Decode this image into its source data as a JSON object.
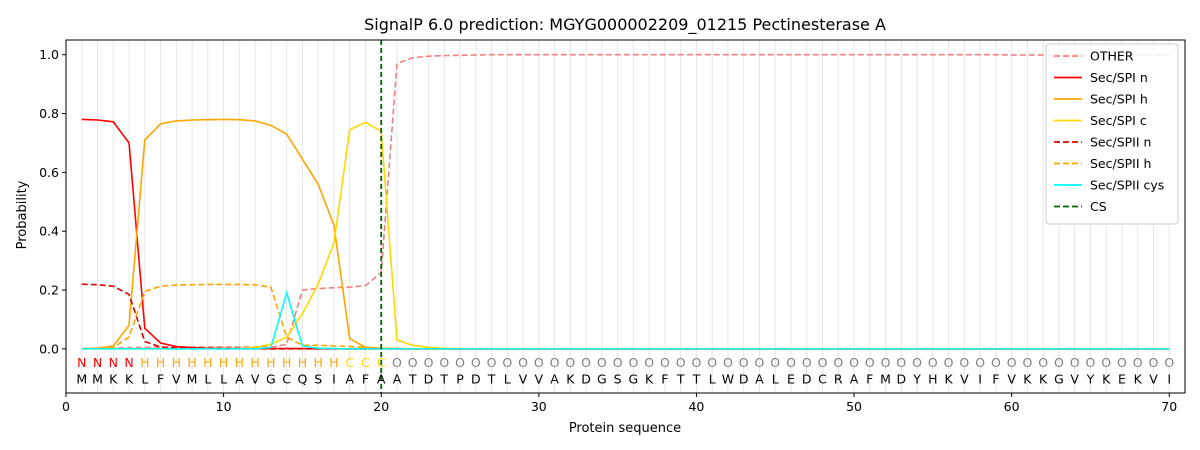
{
  "chart_data": {
    "type": "line",
    "title": "SignalP 6.0 prediction: MGYG000002209_01215 Pectinesterase A",
    "xlabel": "Protein sequence",
    "ylabel": "Probability",
    "xlim": [
      0,
      71
    ],
    "ylim": [
      -0.15,
      1.05
    ],
    "xticks": [
      0,
      10,
      20,
      30,
      40,
      50,
      60,
      70
    ],
    "yticks": [
      0.0,
      0.2,
      0.4,
      0.6,
      0.8,
      1.0
    ],
    "grid": "vertical lines at each residue",
    "legend_position": "top-right",
    "sequence": [
      "M",
      "M",
      "K",
      "K",
      "L",
      "F",
      "V",
      "M",
      "L",
      "L",
      "A",
      "V",
      "G",
      "C",
      "Q",
      "S",
      "I",
      "A",
      "F",
      "A",
      "A",
      "T",
      "D",
      "T",
      "P",
      "D",
      "T",
      "L",
      "V",
      "V",
      "A",
      "K",
      "D",
      "G",
      "S",
      "G",
      "K",
      "F",
      "T",
      "T",
      "L",
      "W",
      "D",
      "A",
      "L",
      "E",
      "D",
      "C",
      "R",
      "A",
      "F",
      "M",
      "D",
      "Y",
      "H",
      "K",
      "V",
      "I",
      "F",
      "V",
      "K",
      "K",
      "G",
      "V",
      "Y",
      "K",
      "E",
      "K",
      "V",
      "I"
    ],
    "region_labels": [
      "N",
      "N",
      "N",
      "N",
      "H",
      "H",
      "H",
      "H",
      "H",
      "H",
      "H",
      "H",
      "H",
      "H",
      "H",
      "H",
      "H",
      "C",
      "C",
      "C",
      "O",
      "O",
      "O",
      "O",
      "O",
      "O",
      "O",
      "O",
      "O",
      "O",
      "O",
      "O",
      "O",
      "O",
      "O",
      "O",
      "O",
      "O",
      "O",
      "O",
      "O",
      "O",
      "O",
      "O",
      "O",
      "O",
      "O",
      "O",
      "O",
      "O",
      "O",
      "O",
      "O",
      "O",
      "O",
      "O",
      "O",
      "O",
      "O",
      "O",
      "O",
      "O",
      "O",
      "O",
      "O",
      "O",
      "O",
      "O",
      "O",
      "O"
    ],
    "region_colors": {
      "N": "#ff0000",
      "H": "#ffa500",
      "C": "#ffd700",
      "O": "#808080"
    },
    "cleavage_site": 20,
    "series": [
      {
        "name": "OTHER",
        "color": "#f08080",
        "dash": "dashed",
        "values": [
          0.001,
          0.002,
          0.003,
          0.004,
          0.005,
          0.006,
          0.006,
          0.006,
          0.006,
          0.006,
          0.006,
          0.006,
          0.006,
          0.015,
          0.2,
          0.205,
          0.208,
          0.21,
          0.215,
          0.26,
          0.97,
          0.99,
          0.995,
          0.997,
          0.998,
          0.999,
          1.0,
          1.0,
          1.0,
          1.0,
          1.0,
          1.0,
          1.0,
          1.0,
          1.0,
          1.0,
          1.0,
          1.0,
          1.0,
          1.0,
          1.0,
          1.0,
          1.0,
          1.0,
          1.0,
          1.0,
          1.0,
          1.0,
          1.0,
          1.0,
          1.0,
          1.0,
          1.0,
          1.0,
          1.0,
          1.0,
          1.0,
          1.0,
          1.0,
          0.999,
          0.999,
          0.999,
          0.999,
          0.999,
          0.999,
          0.999,
          0.999,
          0.999,
          0.999,
          0.999
        ]
      },
      {
        "name": "Sec/SPI n",
        "color": "#ff0000",
        "dash": "solid",
        "values": [
          0.78,
          0.778,
          0.772,
          0.7,
          0.07,
          0.02,
          0.008,
          0.004,
          0.002,
          0.001,
          0.001,
          0.001,
          0.001,
          0.001,
          0.001,
          0,
          0,
          0,
          0,
          0,
          0,
          0,
          0,
          0,
          0,
          0,
          0,
          0,
          0,
          0,
          0,
          0,
          0,
          0,
          0,
          0,
          0,
          0,
          0,
          0,
          0,
          0,
          0,
          0,
          0,
          0,
          0,
          0,
          0,
          0,
          0,
          0,
          0,
          0,
          0,
          0,
          0,
          0,
          0,
          0,
          0,
          0,
          0,
          0,
          0,
          0,
          0,
          0,
          0,
          0
        ]
      },
      {
        "name": "Sec/SPI h",
        "color": "#ffa500",
        "dash": "solid",
        "values": [
          0.0,
          0.003,
          0.01,
          0.08,
          0.71,
          0.765,
          0.775,
          0.778,
          0.779,
          0.78,
          0.779,
          0.775,
          0.76,
          0.73,
          0.645,
          0.56,
          0.42,
          0.035,
          0.005,
          0.002,
          0.001,
          0,
          0,
          0,
          0,
          0,
          0,
          0,
          0,
          0,
          0,
          0,
          0,
          0,
          0,
          0,
          0,
          0,
          0,
          0,
          0,
          0,
          0,
          0,
          0,
          0,
          0,
          0,
          0,
          0,
          0,
          0,
          0,
          0,
          0,
          0,
          0,
          0,
          0,
          0,
          0,
          0,
          0,
          0,
          0,
          0,
          0,
          0,
          0,
          0
        ]
      },
      {
        "name": "Sec/SPI c",
        "color": "#ffd700",
        "dash": "solid",
        "values": [
          0,
          0,
          0,
          0,
          0,
          0,
          0,
          0,
          0,
          0,
          0.001,
          0.005,
          0.015,
          0.04,
          0.12,
          0.22,
          0.36,
          0.745,
          0.77,
          0.74,
          0.03,
          0.012,
          0.005,
          0.002,
          0.001,
          0,
          0,
          0,
          0,
          0,
          0,
          0,
          0,
          0,
          0,
          0,
          0,
          0,
          0,
          0,
          0,
          0,
          0,
          0,
          0,
          0,
          0,
          0,
          0,
          0,
          0,
          0,
          0,
          0,
          0,
          0,
          0,
          0,
          0,
          0,
          0,
          0,
          0,
          0,
          0,
          0,
          0,
          0,
          0,
          0
        ]
      },
      {
        "name": "Sec/SPII n",
        "color": "#dd0000",
        "dash": "dashed",
        "values": [
          0.22,
          0.218,
          0.213,
          0.185,
          0.025,
          0.006,
          0.003,
          0.001,
          0.001,
          0,
          0,
          0,
          0,
          0,
          0,
          0,
          0,
          0,
          0,
          0,
          0,
          0,
          0,
          0,
          0,
          0,
          0,
          0,
          0,
          0,
          0,
          0,
          0,
          0,
          0,
          0,
          0,
          0,
          0,
          0,
          0,
          0,
          0,
          0,
          0,
          0,
          0,
          0,
          0,
          0,
          0,
          0,
          0,
          0,
          0,
          0,
          0,
          0,
          0,
          0,
          0,
          0,
          0,
          0,
          0,
          0,
          0,
          0,
          0,
          0
        ]
      },
      {
        "name": "Sec/SPII h",
        "color": "#ffa500",
        "dash": "dashed",
        "values": [
          0.0,
          0.002,
          0.005,
          0.04,
          0.195,
          0.213,
          0.217,
          0.218,
          0.219,
          0.219,
          0.219,
          0.218,
          0.21,
          0.04,
          0.012,
          0.012,
          0.01,
          0.008,
          0.005,
          0.003,
          0.001,
          0,
          0,
          0,
          0,
          0,
          0,
          0,
          0,
          0,
          0,
          0,
          0,
          0,
          0,
          0,
          0,
          0,
          0,
          0,
          0,
          0,
          0,
          0,
          0,
          0,
          0,
          0,
          0,
          0,
          0,
          0,
          0,
          0,
          0,
          0,
          0,
          0,
          0,
          0,
          0,
          0,
          0,
          0,
          0,
          0,
          0,
          0,
          0,
          0
        ]
      },
      {
        "name": "Sec/SPII cys",
        "color": "#00ffff",
        "dash": "solid",
        "values": [
          0,
          0,
          0,
          0,
          0,
          0,
          0,
          0,
          0,
          0,
          0,
          0,
          0.005,
          0.19,
          0.01,
          0.002,
          0.001,
          0,
          0,
          0,
          0,
          0,
          0,
          0,
          0,
          0,
          0,
          0,
          0,
          0,
          0,
          0,
          0,
          0,
          0,
          0,
          0,
          0,
          0,
          0,
          0,
          0,
          0,
          0,
          0,
          0,
          0,
          0,
          0,
          0,
          0,
          0,
          0,
          0,
          0,
          0,
          0,
          0,
          0,
          0,
          0,
          0,
          0,
          0,
          0,
          0,
          0,
          0,
          0,
          0
        ]
      }
    ],
    "cs_legend": {
      "name": "CS",
      "color": "#006400",
      "dash": "dashed"
    }
  }
}
